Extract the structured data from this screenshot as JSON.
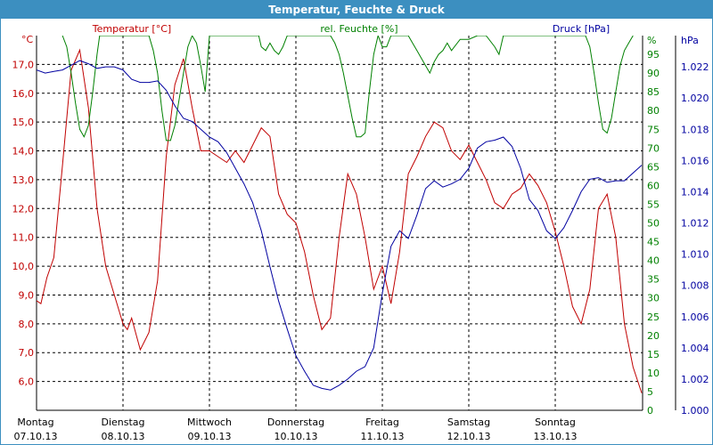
{
  "title": "Temperatur, Feuchte & Druck",
  "chart_data": {
    "type": "line",
    "title": "Temperatur, Feuchte & Druck",
    "grid": true,
    "x_categories": [
      {
        "day": "Montag",
        "date": "07.10.13"
      },
      {
        "day": "Dienstag",
        "date": "08.10.13"
      },
      {
        "day": "Mittwoch",
        "date": "09.10.13"
      },
      {
        "day": "Donnerstag",
        "date": "10.10.13"
      },
      {
        "day": "Freitag",
        "date": "11.10.13"
      },
      {
        "day": "Samstag",
        "date": "12.10.13"
      },
      {
        "day": "Sonntag",
        "date": "13.10.13"
      }
    ],
    "axes": {
      "temperature": {
        "label": "Temperatur [°C]",
        "unit": "°C",
        "side": "left",
        "color": "#c00000",
        "ylim": [
          5.0,
          18.0
        ],
        "ticks": [
          "6,0",
          "7,0",
          "8,0",
          "9,0",
          "10,0",
          "11,0",
          "12,0",
          "13,0",
          "14,0",
          "15,0",
          "16,0",
          "17,0"
        ]
      },
      "humidity": {
        "label": "rel. Feuchte [%]",
        "unit": "%",
        "side": "right",
        "color": "#008000",
        "ylim": [
          0,
          100
        ],
        "ticks": [
          "0",
          "5",
          "10",
          "15",
          "20",
          "25",
          "30",
          "35",
          "40",
          "45",
          "50",
          "55",
          "60",
          "65",
          "70",
          "75",
          "80",
          "85",
          "90",
          "95"
        ]
      },
      "pressure": {
        "label": "Druck [hPa]",
        "unit": "hPa",
        "side": "right",
        "color": "#0000a0",
        "ylim": [
          1.0,
          1.024
        ],
        "ticks": [
          "1.000",
          "1.002",
          "1.004",
          "1.006",
          "1.008",
          "1.010",
          "1.012",
          "1.014",
          "1.016",
          "1.018",
          "1.020",
          "1.022"
        ]
      }
    },
    "series": [
      {
        "name": "Temperatur [°C]",
        "axis": "temperature",
        "color": "#c00000",
        "x": [
          0,
          0.05,
          0.12,
          0.2,
          0.3,
          0.4,
          0.5,
          0.6,
          0.7,
          0.8,
          0.9,
          1.0,
          1.05,
          1.1,
          1.2,
          1.3,
          1.4,
          1.5,
          1.6,
          1.7,
          1.8,
          1.9,
          2.0,
          2.1,
          2.2,
          2.3,
          2.4,
          2.5,
          2.6,
          2.7,
          2.8,
          2.9,
          3.0,
          3.1,
          3.2,
          3.3,
          3.4,
          3.5,
          3.6,
          3.7,
          3.8,
          3.9,
          4.0,
          4.1,
          4.2,
          4.3,
          4.4,
          4.5,
          4.6,
          4.7,
          4.8,
          4.9,
          5.0,
          5.1,
          5.2,
          5.3,
          5.4,
          5.5,
          5.6,
          5.7,
          5.8,
          5.9,
          6.0,
          6.1,
          6.2,
          6.3,
          6.4,
          6.5,
          6.6,
          6.7,
          6.8,
          6.9,
          7.0
        ],
        "y": [
          8.8,
          8.7,
          9.6,
          10.3,
          13.5,
          16.8,
          17.5,
          15.5,
          12.0,
          10.0,
          9.0,
          8.0,
          7.8,
          8.2,
          7.1,
          7.7,
          9.5,
          13.8,
          16.3,
          17.2,
          15.5,
          14.0,
          14.0,
          13.8,
          13.6,
          14.0,
          13.6,
          14.2,
          14.8,
          14.5,
          12.5,
          11.8,
          11.5,
          10.5,
          9.0,
          7.8,
          8.2,
          11.0,
          13.2,
          12.5,
          11.0,
          9.2,
          10.0,
          8.7,
          10.5,
          13.2,
          13.8,
          14.5,
          15.0,
          14.8,
          14.0,
          13.7,
          14.2,
          13.6,
          13.0,
          12.2,
          12.0,
          12.5,
          12.7,
          13.2,
          12.8,
          12.2,
          11.2,
          10.0,
          8.6,
          8.0,
          9.2,
          12.0,
          12.5,
          11.0,
          8.0,
          6.5,
          5.6
        ]
      },
      {
        "name": "rel. Feuchte [%]",
        "axis": "humidity",
        "color": "#008000",
        "x": [
          0.3,
          0.35,
          0.4,
          0.45,
          0.5,
          0.55,
          0.6,
          0.65,
          0.7,
          0.73,
          1.3,
          1.35,
          1.4,
          1.45,
          1.5,
          1.55,
          1.6,
          1.65,
          1.7,
          1.75,
          1.8,
          1.85,
          1.9,
          1.95,
          2.0,
          2.57,
          2.6,
          2.65,
          2.7,
          2.75,
          2.8,
          2.85,
          2.9,
          3.4,
          3.45,
          3.5,
          3.55,
          3.6,
          3.65,
          3.7,
          3.75,
          3.8,
          3.85,
          3.9,
          3.95,
          4.0,
          4.05,
          4.1,
          4.15,
          4.3,
          4.35,
          4.4,
          4.5,
          4.55,
          4.6,
          4.65,
          4.7,
          4.75,
          4.8,
          4.9,
          5.0,
          5.1,
          5.2,
          5.3,
          5.35,
          5.4,
          6.35,
          6.4,
          6.45,
          6.5,
          6.55,
          6.6,
          6.65,
          6.7,
          6.75,
          6.8,
          6.85,
          6.9
        ],
        "y": [
          100,
          97,
          90,
          82,
          75,
          73,
          76,
          85,
          95,
          100,
          100,
          96,
          90,
          80,
          72,
          72,
          76,
          83,
          90,
          97,
          100,
          98,
          92,
          85,
          100,
          100,
          97,
          96,
          98,
          96,
          95,
          97,
          100,
          100,
          98,
          95,
          90,
          84,
          78,
          73,
          73,
          74,
          85,
          95,
          100,
          97,
          97,
          100,
          100,
          100,
          98,
          96,
          92,
          90,
          93,
          95,
          96,
          98,
          96,
          99,
          99,
          100,
          100,
          97,
          95,
          100,
          100,
          97,
          90,
          82,
          75,
          74,
          78,
          85,
          92,
          96,
          98,
          100
        ]
      },
      {
        "name": "Druck [hPa]",
        "axis": "pressure",
        "color": "#0000a0",
        "x": [
          0,
          0.1,
          0.2,
          0.3,
          0.4,
          0.5,
          0.6,
          0.7,
          0.8,
          0.9,
          1.0,
          1.1,
          1.2,
          1.3,
          1.4,
          1.5,
          1.6,
          1.7,
          1.8,
          1.9,
          2.0,
          2.1,
          2.2,
          2.3,
          2.4,
          2.5,
          2.6,
          2.7,
          2.8,
          2.9,
          3.0,
          3.1,
          3.2,
          3.3,
          3.4,
          3.5,
          3.6,
          3.7,
          3.8,
          3.9,
          4.0,
          4.1,
          4.2,
          4.3,
          4.4,
          4.5,
          4.6,
          4.7,
          4.8,
          4.9,
          5.0,
          5.1,
          5.2,
          5.3,
          5.4,
          5.5,
          5.6,
          5.7,
          5.8,
          5.9,
          6.0,
          6.1,
          6.2,
          6.3,
          6.4,
          6.5,
          6.6,
          6.7,
          6.8,
          6.9,
          7.0
        ],
        "y": [
          1.0218,
          1.0216,
          1.0217,
          1.0218,
          1.0221,
          1.0224,
          1.0222,
          1.0219,
          1.022,
          1.022,
          1.0218,
          1.0212,
          1.021,
          1.021,
          1.0211,
          1.0205,
          1.0195,
          1.0187,
          1.0185,
          1.018,
          1.0175,
          1.0172,
          1.0165,
          1.0155,
          1.0145,
          1.0133,
          1.0115,
          1.0092,
          1.007,
          1.0052,
          1.0035,
          1.0025,
          1.0016,
          1.0014,
          1.0013,
          1.0016,
          1.002,
          1.0025,
          1.0028,
          1.004,
          1.0075,
          1.0105,
          1.0115,
          1.011,
          1.0125,
          1.0142,
          1.0147,
          1.0143,
          1.0145,
          1.0148,
          1.0155,
          1.0168,
          1.0172,
          1.0173,
          1.0175,
          1.0169,
          1.0155,
          1.0135,
          1.0128,
          1.0115,
          1.011,
          1.0117,
          1.0128,
          1.014,
          1.0148,
          1.0149,
          1.0146,
          1.0147,
          1.0147,
          1.0152,
          1.0157
        ]
      }
    ]
  }
}
